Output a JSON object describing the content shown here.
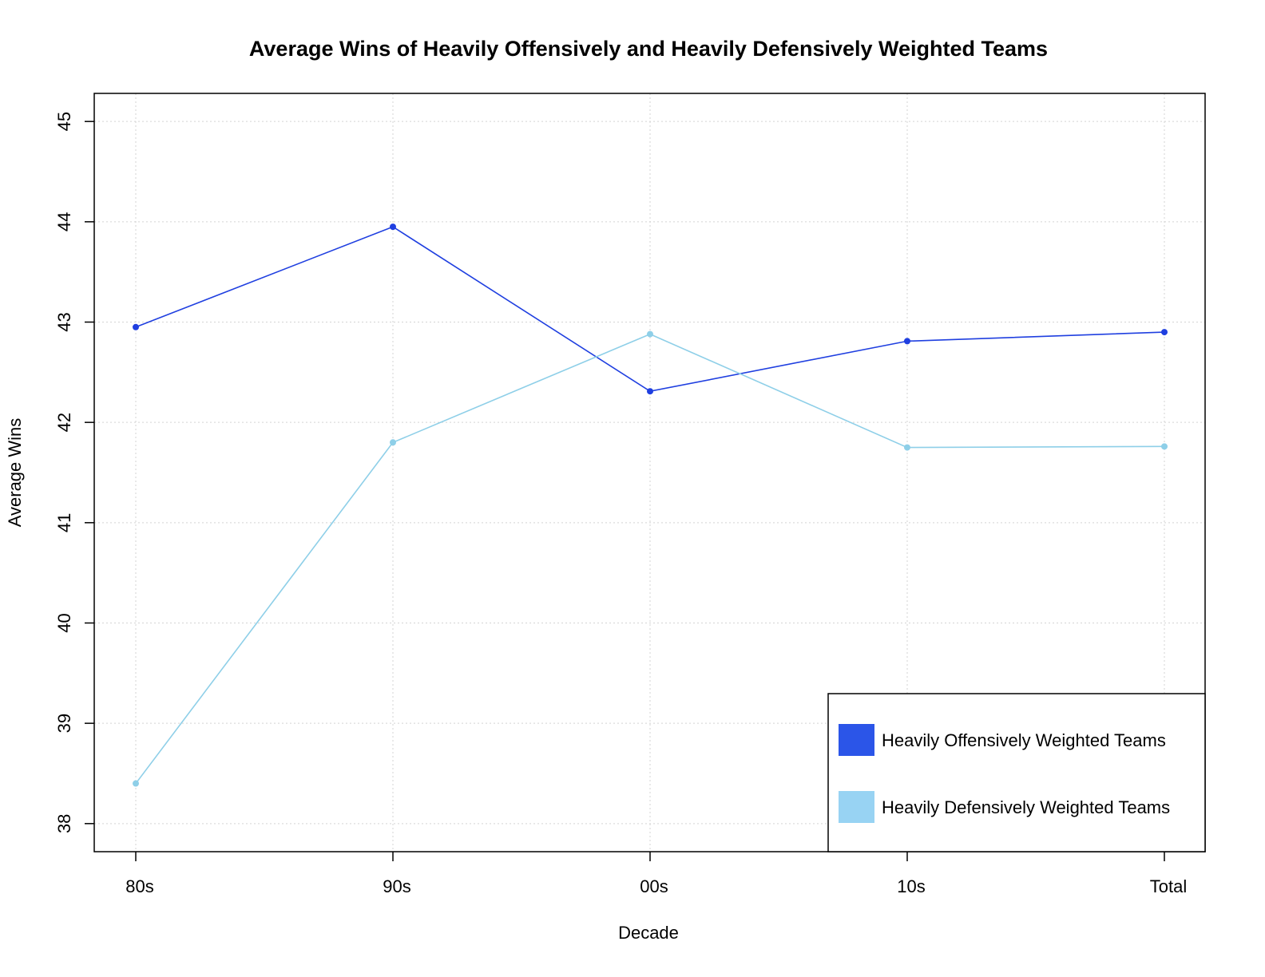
{
  "chart_data": {
    "type": "line",
    "title": "Average Wins of Heavily Offensively and Heavily Defensively Weighted Teams",
    "xlabel": "Decade",
    "ylabel": "Average Wins",
    "categories": [
      "80s",
      "90s",
      "00s",
      "10s",
      "Total"
    ],
    "ylim": [
      37.72,
      45.28
    ],
    "yticks": [
      38,
      39,
      40,
      41,
      42,
      43,
      44,
      45
    ],
    "grid": true,
    "legend_position": "bottom-right",
    "series": [
      {
        "name": "Heavily Offensively Weighted Teams",
        "color": "#1f3fe0",
        "legend_color": "#2b55e8",
        "values": [
          42.95,
          43.95,
          42.31,
          42.81,
          42.9
        ]
      },
      {
        "name": "Heavily Defensively Weighted Teams",
        "color": "#8ecfe8",
        "legend_color": "#98d3f3",
        "values": [
          38.4,
          41.8,
          42.88,
          41.75,
          41.76
        ]
      }
    ]
  }
}
